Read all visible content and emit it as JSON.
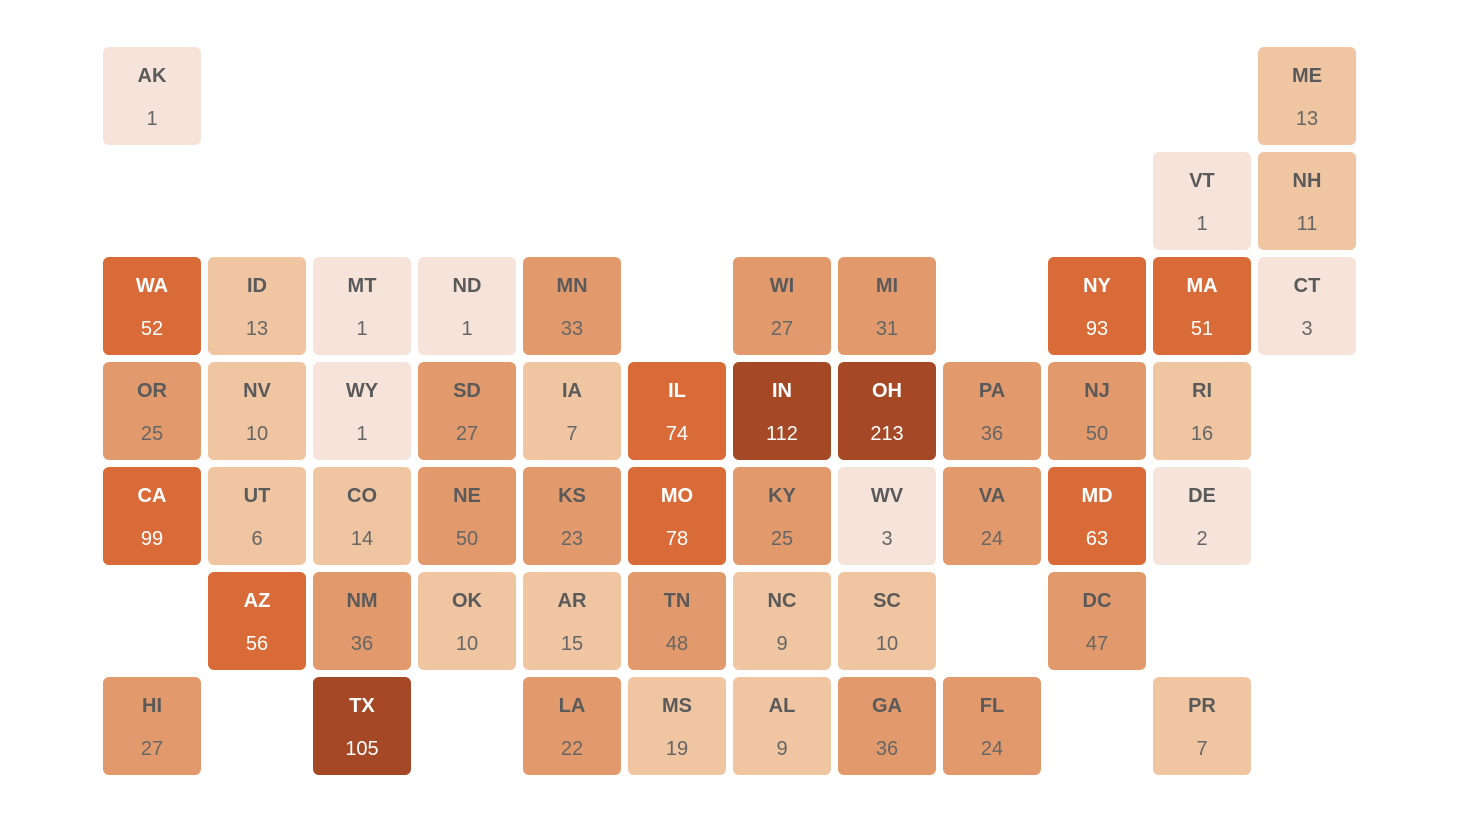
{
  "tiles": [
    {
      "state": "AK",
      "value": 1,
      "color": "#f6e4da"
    },
    {
      "state": "ME",
      "value": 13,
      "color": "#efc5a2"
    },
    {
      "state": "VT",
      "value": 1,
      "color": "#f6e4da"
    },
    {
      "state": "NH",
      "value": 11,
      "color": "#efc5a2"
    },
    {
      "state": "WA",
      "value": 52,
      "color": "#d86b38"
    },
    {
      "state": "ID",
      "value": 13,
      "color": "#efc5a2"
    },
    {
      "state": "MT",
      "value": 1,
      "color": "#f6e4da"
    },
    {
      "state": "ND",
      "value": 1,
      "color": "#f6e4da"
    },
    {
      "state": "MN",
      "value": 33,
      "color": "#e29a6c"
    },
    {
      "state": "WI",
      "value": 27,
      "color": "#e29a6c"
    },
    {
      "state": "MI",
      "value": 31,
      "color": "#e29a6c"
    },
    {
      "state": "NY",
      "value": 93,
      "color": "#d86b38"
    },
    {
      "state": "MA",
      "value": 51,
      "color": "#d86b38"
    },
    {
      "state": "CT",
      "value": 3,
      "color": "#f6e4da"
    },
    {
      "state": "OR",
      "value": 25,
      "color": "#e29a6c"
    },
    {
      "state": "NV",
      "value": 10,
      "color": "#efc5a2"
    },
    {
      "state": "WY",
      "value": 1,
      "color": "#f6e4da"
    },
    {
      "state": "SD",
      "value": 27,
      "color": "#e29a6c"
    },
    {
      "state": "IA",
      "value": 7,
      "color": "#efc5a2"
    },
    {
      "state": "IL",
      "value": 74,
      "color": "#d86b38"
    },
    {
      "state": "IN",
      "value": 112,
      "color": "#a44826"
    },
    {
      "state": "OH",
      "value": 213,
      "color": "#a44826"
    },
    {
      "state": "PA",
      "value": 36,
      "color": "#e29a6c"
    },
    {
      "state": "NJ",
      "value": 50,
      "color": "#e29a6c"
    },
    {
      "state": "RI",
      "value": 16,
      "color": "#efc5a2"
    },
    {
      "state": "CA",
      "value": 99,
      "color": "#d86b38"
    },
    {
      "state": "UT",
      "value": 6,
      "color": "#efc5a2"
    },
    {
      "state": "CO",
      "value": 14,
      "color": "#efc5a2"
    },
    {
      "state": "NE",
      "value": 50,
      "color": "#e29a6c"
    },
    {
      "state": "KS",
      "value": 23,
      "color": "#e29a6c"
    },
    {
      "state": "MO",
      "value": 78,
      "color": "#d86b38"
    },
    {
      "state": "KY",
      "value": 25,
      "color": "#e29a6c"
    },
    {
      "state": "WV",
      "value": 3,
      "color": "#f6e4da"
    },
    {
      "state": "VA",
      "value": 24,
      "color": "#e29a6c"
    },
    {
      "state": "MD",
      "value": 63,
      "color": "#d86b38"
    },
    {
      "state": "DE",
      "value": 2,
      "color": "#f6e4da"
    },
    {
      "state": "AZ",
      "value": 56,
      "color": "#d86b38"
    },
    {
      "state": "NM",
      "value": 36,
      "color": "#e29a6c"
    },
    {
      "state": "OK",
      "value": 10,
      "color": "#efc5a2"
    },
    {
      "state": "AR",
      "value": 15,
      "color": "#efc5a2"
    },
    {
      "state": "TN",
      "value": 48,
      "color": "#e29a6c"
    },
    {
      "state": "NC",
      "value": 9,
      "color": "#efc5a2"
    },
    {
      "state": "SC",
      "value": 10,
      "color": "#efc5a2"
    },
    {
      "state": "DC",
      "value": 47,
      "color": "#e29a6c"
    },
    {
      "state": "HI",
      "value": 27,
      "color": "#e29a6c"
    },
    {
      "state": "TX",
      "value": 105,
      "color": "#a44826"
    },
    {
      "state": "LA",
      "value": 22,
      "color": "#e29a6c"
    },
    {
      "state": "MS",
      "value": 19,
      "color": "#efc5a2"
    },
    {
      "state": "AL",
      "value": 9,
      "color": "#efc5a2"
    },
    {
      "state": "GA",
      "value": 36,
      "color": "#e29a6c"
    },
    {
      "state": "FL",
      "value": 24,
      "color": "#e29a6c"
    },
    {
      "state": "PR",
      "value": 7,
      "color": "#efc5a2"
    }
  ]
}
